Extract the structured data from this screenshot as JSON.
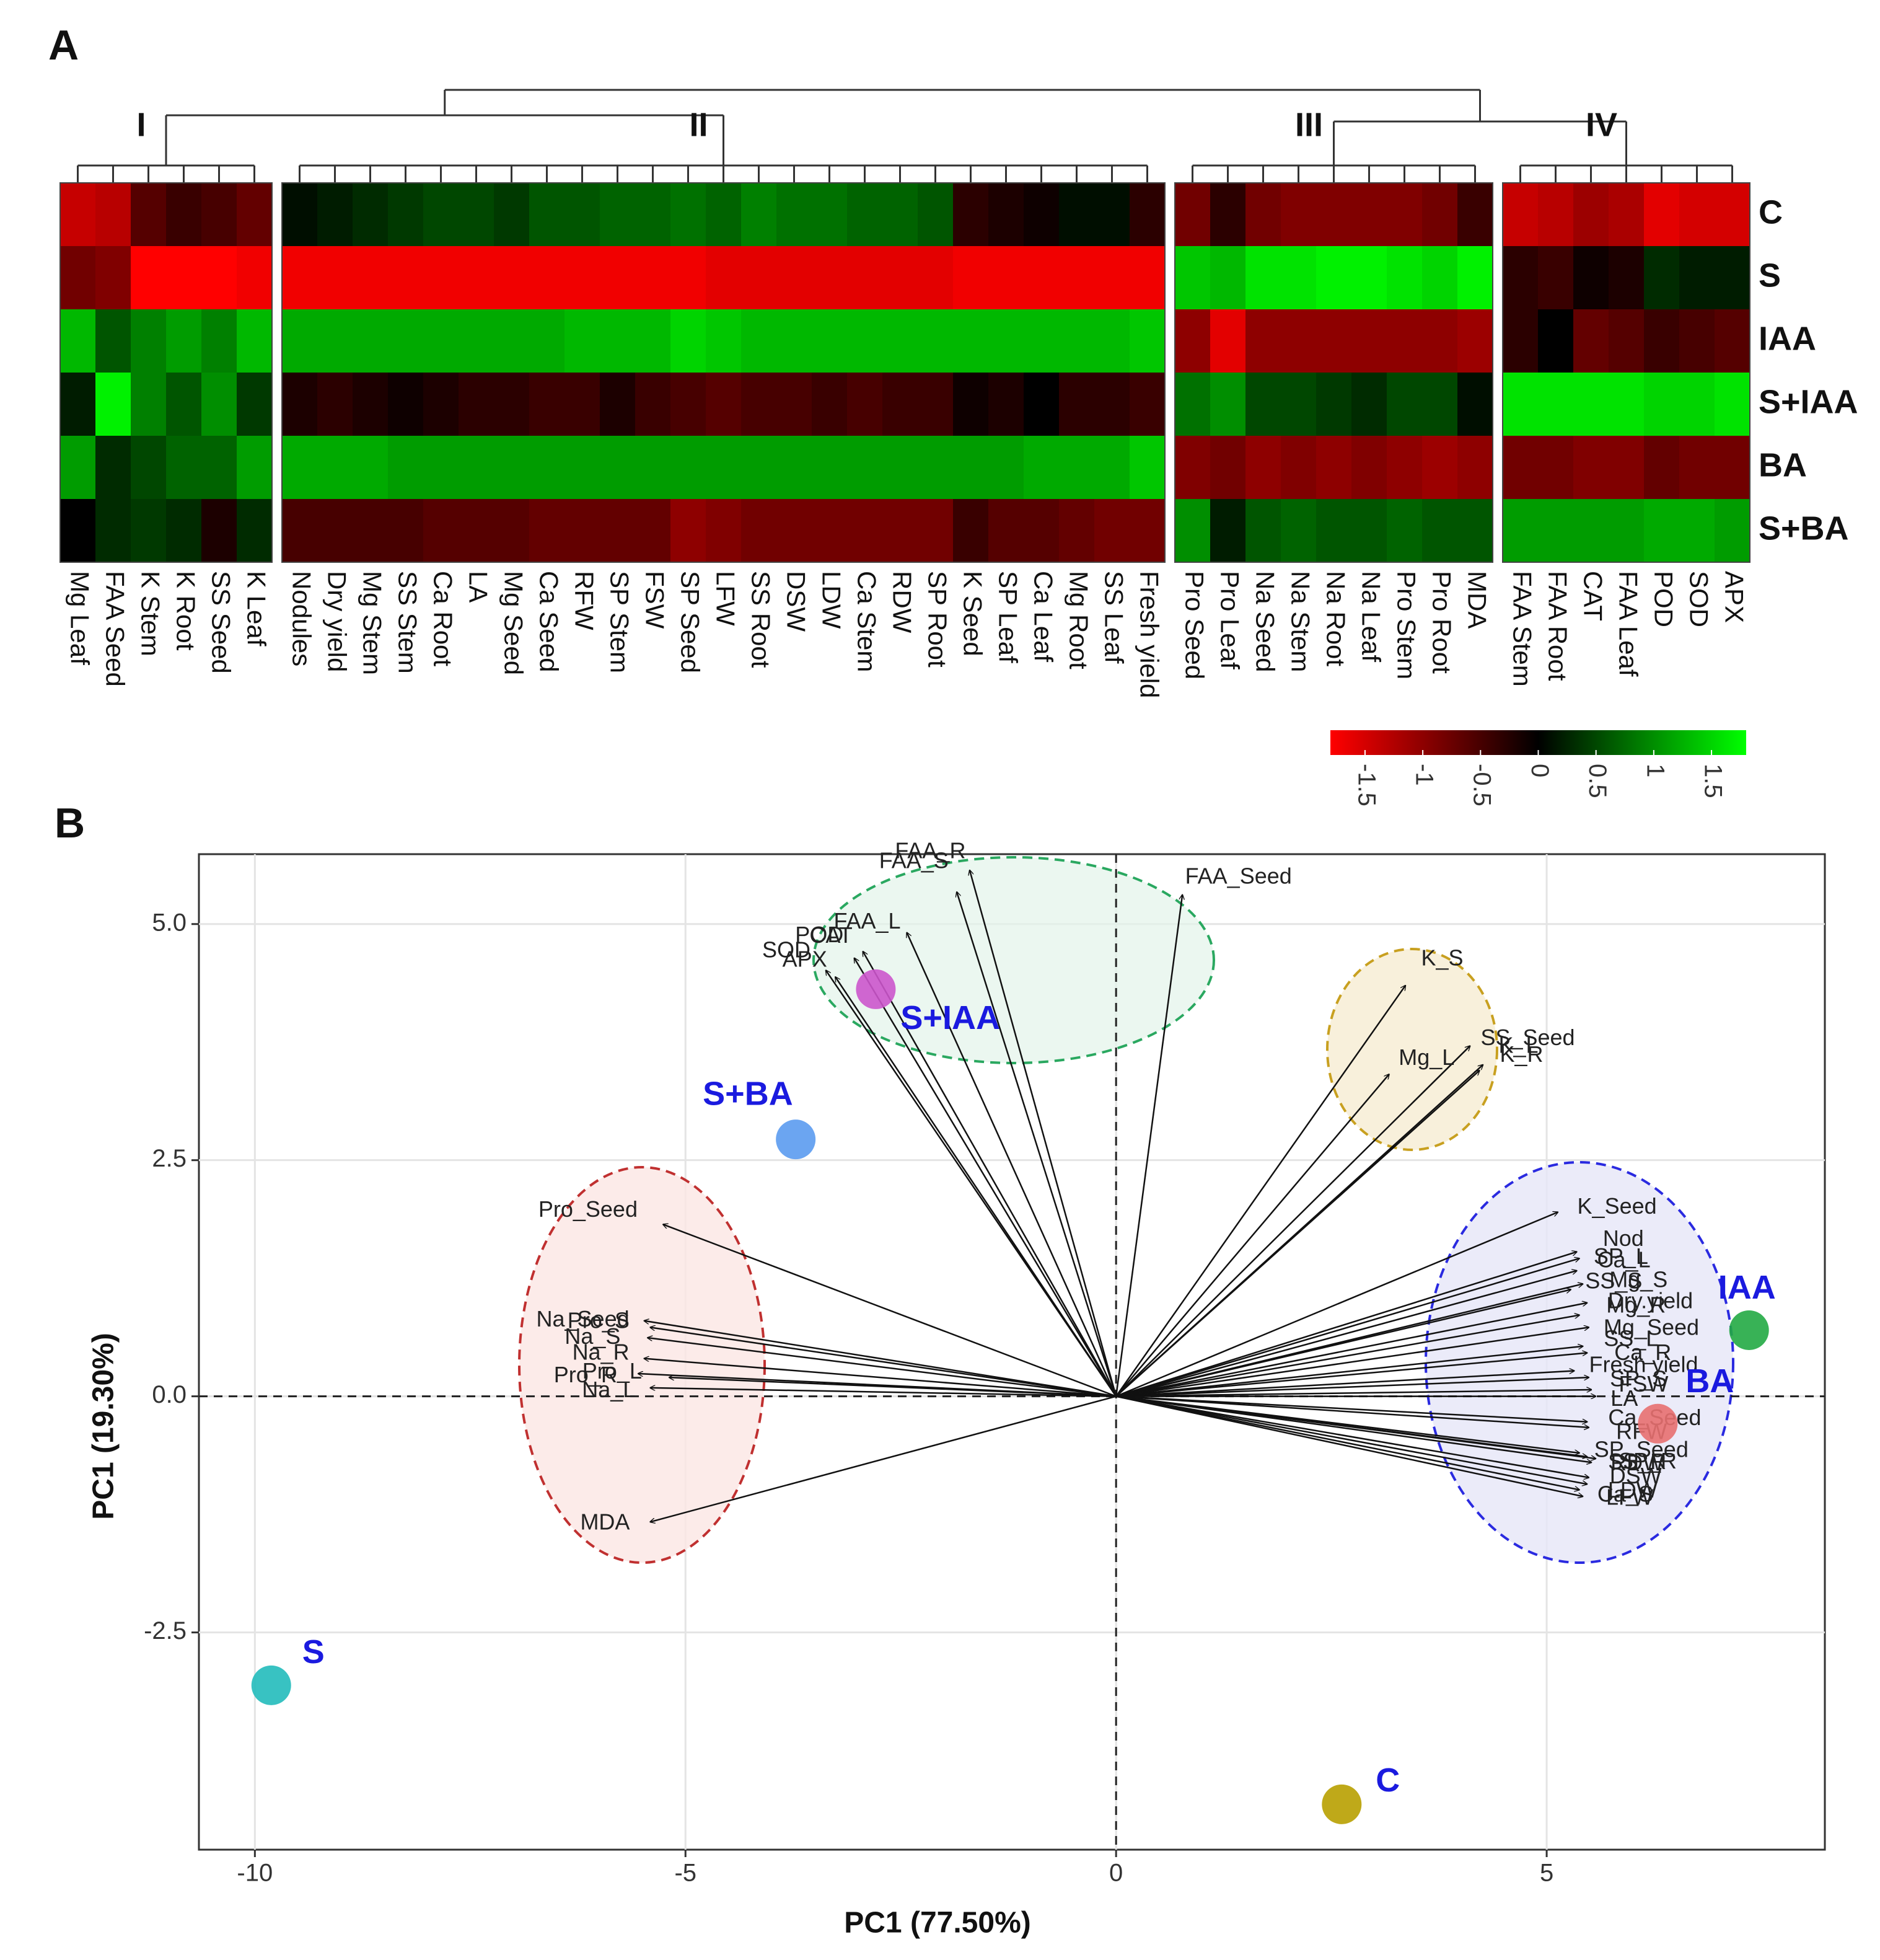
{
  "chart_data": [
    {
      "type": "heatmap",
      "panel": "A",
      "rows": [
        "C",
        "S",
        "IAA",
        "S+IAA",
        "BA",
        "S+BA"
      ],
      "column_groups": [
        {
          "name": "I",
          "columns": [
            "Mg Leaf",
            "FAA Seed",
            "K Stem",
            "K Root",
            "SS Seed",
            "K Leaf"
          ]
        },
        {
          "name": "II",
          "columns": [
            "Nodules",
            "Dry yield",
            "Mg Stem",
            "SS Stem",
            "Ca Root",
            "LA",
            "Mg Seed",
            "Ca Seed",
            "RFW",
            "SP Stem",
            "FSW",
            "SP Seed",
            "LFW",
            "SS Root",
            "DSW",
            "LDW",
            "Ca Stem",
            "RDW",
            "SP Root",
            "K Seed",
            "SP Leaf",
            "Ca Leaf",
            "Mg Root",
            "SS Leaf",
            "Fresh yield"
          ]
        },
        {
          "name": "III",
          "columns": [
            "Pro Seed",
            "Pro Leaf",
            "Na Seed",
            "Na Stem",
            "Na Root",
            "Na Leaf",
            "Pro Stem",
            "Pro Root",
            "MDA"
          ]
        },
        {
          "name": "IV",
          "columns": [
            "FAA Stem",
            "FAA Root",
            "CAT",
            "FAA Leaf",
            "POD",
            "SOD",
            "APX"
          ]
        }
      ],
      "values": [
        [
          -1.4,
          -1.3,
          -0.6,
          -0.4,
          -0.5,
          -0.7,
          0.1,
          0.2,
          0.3,
          0.4,
          0.5,
          0.5,
          0.4,
          0.6,
          0.6,
          0.7,
          0.7,
          0.8,
          0.7,
          0.9,
          0.8,
          0.8,
          0.7,
          0.7,
          0.6,
          -0.3,
          -0.2,
          -0.1,
          0.1,
          0.1,
          -0.3,
          -0.8,
          -0.3,
          -0.8,
          -0.9,
          -0.9,
          -0.9,
          -0.9,
          -0.8,
          -0.4,
          -1.4,
          -1.3,
          -1.1,
          -1.2,
          -1.6,
          -1.5,
          -1.5
        ],
        [
          -0.8,
          -0.9,
          -1.8,
          -1.8,
          -1.8,
          -1.7,
          -1.7,
          -1.7,
          -1.7,
          -1.7,
          -1.7,
          -1.7,
          -1.7,
          -1.7,
          -1.7,
          -1.7,
          -1.7,
          -1.7,
          -1.6,
          -1.6,
          -1.6,
          -1.6,
          -1.6,
          -1.6,
          -1.6,
          -1.7,
          -1.7,
          -1.7,
          -1.7,
          -1.7,
          -1.7,
          1.4,
          1.3,
          1.6,
          1.6,
          1.7,
          1.7,
          1.6,
          1.5,
          1.7,
          -0.3,
          -0.4,
          -0.1,
          -0.2,
          0.3,
          0.2,
          0.2
        ],
        [
          1.3,
          0.6,
          0.9,
          1.1,
          0.9,
          1.3,
          1.2,
          1.2,
          1.2,
          1.2,
          1.2,
          1.2,
          1.2,
          1.2,
          1.3,
          1.3,
          1.3,
          1.5,
          1.4,
          1.3,
          1.3,
          1.3,
          1.3,
          1.3,
          1.3,
          1.3,
          1.3,
          1.3,
          1.3,
          1.3,
          1.4,
          -1.0,
          -1.6,
          -1.0,
          -1.0,
          -1.0,
          -1.0,
          -1.0,
          -1.0,
          -1.1,
          -0.3,
          0,
          -0.7,
          -0.6,
          -0.4,
          -0.5,
          -0.6
        ],
        [
          0.2,
          1.7,
          0.9,
          0.6,
          1.0,
          0.4,
          -0.2,
          -0.3,
          -0.2,
          -0.1,
          -0.2,
          -0.3,
          -0.3,
          -0.4,
          -0.4,
          -0.2,
          -0.4,
          -0.5,
          -0.6,
          -0.5,
          -0.5,
          -0.4,
          -0.5,
          -0.4,
          -0.4,
          -0.1,
          -0.2,
          0,
          -0.3,
          -0.3,
          -0.4,
          0.8,
          1.0,
          0.5,
          0.5,
          0.4,
          0.3,
          0.5,
          0.5,
          0.1,
          1.6,
          1.6,
          1.6,
          1.6,
          1.5,
          1.5,
          1.6
        ],
        [
          1.1,
          0.3,
          0.5,
          0.7,
          0.7,
          1.1,
          1.2,
          1.2,
          1.2,
          1.1,
          1.1,
          1.1,
          1.1,
          1.1,
          1.1,
          1.1,
          1.1,
          1.1,
          1.1,
          1.1,
          1.1,
          1.1,
          1.1,
          1.1,
          1.1,
          1.1,
          1.1,
          1.2,
          1.2,
          1.2,
          1.4,
          -0.9,
          -0.8,
          -1.0,
          -0.9,
          -1.0,
          -0.9,
          -1.0,
          -1.1,
          -1.0,
          -0.8,
          -0.8,
          -0.9,
          -0.9,
          -0.7,
          -0.8,
          -0.8
        ],
        [
          0,
          0.3,
          0.4,
          0.3,
          -0.2,
          0.3,
          -0.5,
          -0.5,
          -0.5,
          -0.5,
          -0.6,
          -0.6,
          -0.6,
          -0.7,
          -0.7,
          -0.7,
          -0.7,
          -1.0,
          -0.9,
          -0.8,
          -0.8,
          -0.8,
          -0.8,
          -0.8,
          -0.8,
          -0.4,
          -0.6,
          -0.6,
          -0.7,
          -0.8,
          -0.8,
          1.0,
          0.2,
          0.6,
          0.7,
          0.6,
          0.6,
          0.7,
          0.6,
          0.6,
          1.1,
          1.1,
          1.1,
          1.1,
          1.2,
          1.2,
          1.1
        ]
      ],
      "colorscale": [
        "#ff0000",
        "#000000",
        "#00ff00"
      ],
      "clim": [
        -1.8,
        1.8
      ],
      "colorbar_ticks": [
        -1.5,
        -1,
        -0.5,
        0,
        0.5,
        1,
        1.5
      ]
    },
    {
      "type": "biplot",
      "panel": "B",
      "xlabel": "PC1 (77.50%)",
      "ylabel": "PC1 (19.30%)",
      "xlim": [
        -10.65,
        8.23
      ],
      "ylim": [
        -4.8,
        5.74
      ],
      "xticks": [
        -10,
        -5,
        0,
        5
      ],
      "yticks": [
        -2.5,
        {
          "value": 0,
          "label": "0.0"
        },
        2.5,
        {
          "value": 5,
          "label": "5.0"
        }
      ],
      "grid": true,
      "points": [
        {
          "name": "S+IAA",
          "x": -2.79,
          "y": 4.31,
          "color": "#cc55cc"
        },
        {
          "name": "S+BA",
          "x": -3.72,
          "y": 2.72,
          "color": "#5b9bf0"
        },
        {
          "name": "S",
          "x": -9.81,
          "y": -3.06,
          "color": "#22bbbb"
        },
        {
          "name": "C",
          "x": 2.62,
          "y": -4.32,
          "color": "#b8a000"
        },
        {
          "name": "IAA",
          "x": 7.35,
          "y": 0.7,
          "color": "#22aa44"
        },
        {
          "name": "BA",
          "x": 6.29,
          "y": -0.29,
          "color": "#e87070"
        }
      ],
      "loadings": [
        {
          "name": "FAA_R",
          "x": -1.7,
          "y": 5.57
        },
        {
          "name": "FAA_Seed",
          "x": 0.77,
          "y": 5.31
        },
        {
          "name": "FAA_S",
          "x": -1.85,
          "y": 5.34
        },
        {
          "name": "FAA_L",
          "x": -2.43,
          "y": 4.91
        },
        {
          "name": "POD",
          "x": -3.04,
          "y": 4.64
        },
        {
          "name": "SOD",
          "x": -3.37,
          "y": 4.51
        },
        {
          "name": "APX",
          "x": -3.26,
          "y": 4.44
        },
        {
          "name": "CAT",
          "x": -2.94,
          "y": 4.71
        },
        {
          "name": "K_S",
          "x": 3.36,
          "y": 4.35
        },
        {
          "name": "SS_Seed",
          "x": 4.11,
          "y": 3.71
        },
        {
          "name": "K_L",
          "x": 4.26,
          "y": 3.51
        },
        {
          "name": "K_R",
          "x": 4.22,
          "y": 3.45
        },
        {
          "name": "Mg_L",
          "x": 3.17,
          "y": 3.41
        },
        {
          "name": "K_Seed",
          "x": 5.13,
          "y": 1.95
        },
        {
          "name": "Nod",
          "x": 5.35,
          "y": 1.53
        },
        {
          "name": "SP_L",
          "x": 5.38,
          "y": 1.46
        },
        {
          "name": "Ca_L",
          "x": 5.35,
          "y": 1.33
        },
        {
          "name": "Mg_S",
          "x": 5.42,
          "y": 1.19
        },
        {
          "name": "SS_S",
          "x": 5.28,
          "y": 1.13
        },
        {
          "name": "Dry.yield",
          "x": 5.47,
          "y": 0.99
        },
        {
          "name": "Mg_R",
          "x": 5.38,
          "y": 0.86
        },
        {
          "name": "Mg_Seed",
          "x": 5.49,
          "y": 0.73
        },
        {
          "name": "SS_L",
          "x": 5.42,
          "y": 0.53
        },
        {
          "name": "Ca_R",
          "x": 5.47,
          "y": 0.46
        },
        {
          "name": "Fresh yield",
          "x": 5.32,
          "y": 0.27
        },
        {
          "name": "SP_S",
          "x": 5.49,
          "y": 0.2
        },
        {
          "name": "FSW",
          "x": 5.52,
          "y": 0.07
        },
        {
          "name": "LA",
          "x": 5.57,
          "y": 0
        },
        {
          "name": "Ca_Seed",
          "x": 5.47,
          "y": -0.27
        },
        {
          "name": "RFW",
          "x": 5.49,
          "y": -0.33
        },
        {
          "name": "SP_Seed",
          "x": 5.38,
          "y": -0.6
        },
        {
          "name": "SS_R",
          "x": 5.47,
          "y": -0.64
        },
        {
          "name": "SP_R",
          "x": 5.52,
          "y": -0.7
        },
        {
          "name": "RDW",
          "x": 5.57,
          "y": -0.66
        },
        {
          "name": "DSW",
          "x": 5.49,
          "y": -0.86
        },
        {
          "name": "LFW",
          "x": 5.38,
          "y": -0.99
        },
        {
          "name": "Ca_S",
          "x": 5.42,
          "y": -1.06
        },
        {
          "name": "LDW",
          "x": 5.47,
          "y": -0.93
        },
        {
          "name": "Pro_Seed",
          "x": -5.26,
          "y": 1.82
        },
        {
          "name": "Pro_S",
          "x": -5.48,
          "y": 0.8
        },
        {
          "name": "Na_Seed",
          "x": -5.41,
          "y": 0.73
        },
        {
          "name": "Na_S",
          "x": -5.44,
          "y": 0.62
        },
        {
          "name": "Na_R",
          "x": -5.48,
          "y": 0.4
        },
        {
          "name": "Pro_R",
          "x": -5.55,
          "y": 0.24
        },
        {
          "name": "Pro_L",
          "x": -5.19,
          "y": 0.2
        },
        {
          "name": "Na_L",
          "x": -5.41,
          "y": 0.09
        },
        {
          "name": "MDA",
          "x": -5.41,
          "y": -1.33
        }
      ]
    }
  ]
}
